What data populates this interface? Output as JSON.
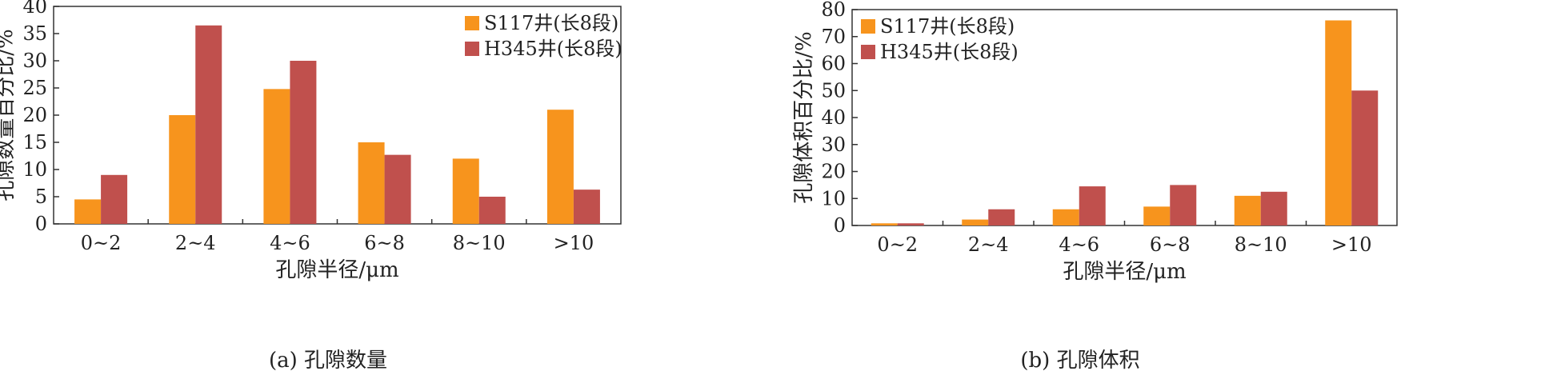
{
  "colors": {
    "s117": "#F7941D",
    "h345": "#C0504D",
    "axis": "#333333"
  },
  "chart_data": [
    {
      "type": "bar",
      "caption": "(a) 孔隙数量",
      "xlabel": "孔隙半径/μm",
      "ylabel": "孔隙数量百分比/%",
      "ylim": [
        0,
        40
      ],
      "yticks": [
        0,
        5,
        10,
        15,
        20,
        25,
        30,
        35,
        40
      ],
      "categories": [
        "0~2",
        "2~4",
        "4~6",
        "6~8",
        "8~10",
        ">10"
      ],
      "series": [
        {
          "name": "S117井(长8段)",
          "values": [
            4.5,
            20,
            24.8,
            15,
            12,
            21
          ]
        },
        {
          "name": "H345井(长8段)",
          "values": [
            9,
            36.5,
            30,
            12.7,
            5,
            6.3
          ]
        }
      ],
      "legend": "top-right",
      "grid": false
    },
    {
      "type": "bar",
      "caption": "(b) 孔隙体积",
      "xlabel": "孔隙半径/μm",
      "ylabel": "孔隙体积百分比/%",
      "ylim": [
        0,
        80
      ],
      "yticks": [
        0,
        10,
        20,
        30,
        40,
        50,
        60,
        70,
        80
      ],
      "categories": [
        "0~2",
        "2~4",
        "4~6",
        "6~8",
        "8~10",
        ">10"
      ],
      "series": [
        {
          "name": "S117井(长8段)",
          "values": [
            0.8,
            2.2,
            6,
            7,
            11,
            76
          ]
        },
        {
          "name": "H345井(长8段)",
          "values": [
            0.8,
            6,
            14.5,
            15,
            12.5,
            50
          ]
        }
      ],
      "legend": "top-left",
      "grid": false
    }
  ]
}
